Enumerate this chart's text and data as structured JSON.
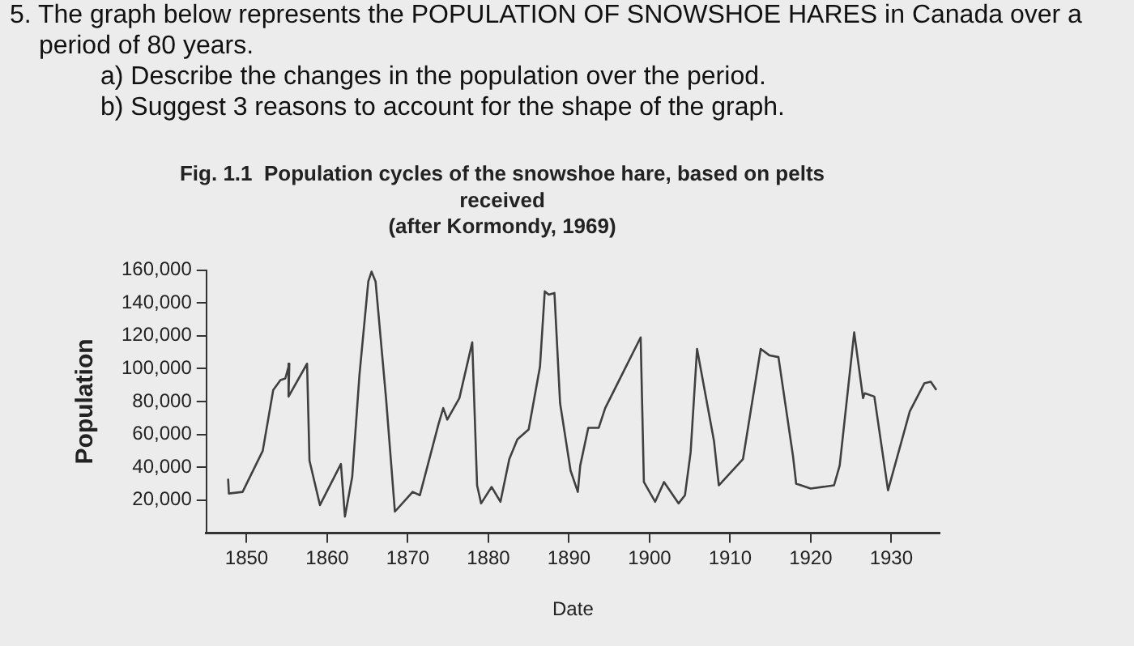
{
  "chart_data": {
    "type": "line",
    "title": [
      "Fig. 1.1  Population cycles of the snowshoe hare, based on pelts",
      "received",
      "(after Kormondy, 1969)"
    ],
    "annotations": [
      "5. The graph below represents the POPULATION OF SNOWSHOE HARES in Canada over a period of 80 years.",
      "a) Describe the changes in the population over the period.",
      "b) Suggest 3 reasons to account for the shape of the graph."
    ],
    "xlabel": "Date",
    "ylabel": "Population",
    "series": [
      {
        "color": "#404040",
        "x": [
          1847.7,
          1847.8,
          1849.5,
          1852,
          1853.3,
          1854.2,
          1854.8,
          1855.3,
          1855.2,
          1857.5,
          1857.8,
          1859.1,
          1861.7,
          1862.2,
          1863.1,
          1864,
          1865.1,
          1865.5,
          1866,
          1867.3,
          1868.4,
          1870.6,
          1871.5,
          1873.8,
          1874.4,
          1874.9,
          1876.4,
          1878,
          1878.6,
          1879.1,
          1880.4,
          1881.5,
          1882.6,
          1883.6,
          1885,
          1886.4,
          1887,
          1887.5,
          1888.2,
          1888.9,
          1890.2,
          1891.1,
          1891.4,
          1892.4,
          1893.7,
          1894.5,
          1898.9,
          1899.3,
          1900.7,
          1901.8,
          1903.6,
          1904.4,
          1905.1,
          1905.9,
          1908,
          1908.6,
          1911.6,
          1913.8,
          1914.9,
          1916,
          1917.8,
          1918.2,
          1920,
          1922.9,
          1923.6,
          1925.4,
          1926.5,
          1926.7,
          1927.9,
          1929.6,
          1932.3,
          1934.1,
          1934.9,
          1935.6
        ],
        "values": [
          33000,
          24000,
          25000,
          50000,
          87000,
          93000,
          94000,
          103000,
          83000,
          103000,
          44000,
          17000,
          42000,
          10000,
          34000,
          96000,
          153000,
          159000,
          153000,
          82000,
          13000,
          25000,
          23000,
          66000,
          76000,
          69000,
          82000,
          116000,
          29000,
          18000,
          28000,
          19000,
          45000,
          57000,
          63000,
          101000,
          147000,
          145000,
          146000,
          79000,
          38000,
          25000,
          41000,
          64000,
          64000,
          76000,
          119000,
          31000,
          19000,
          31000,
          18000,
          23000,
          49000,
          112000,
          56000,
          29000,
          45000,
          112000,
          108000,
          107000,
          47000,
          30000,
          27000,
          29000,
          41000,
          122000,
          82000,
          85000,
          83000,
          26000,
          74000,
          91000,
          92000,
          87000
        ]
      }
    ],
    "xlim": [
      1845,
      1936
    ],
    "xticks": [
      1850,
      1860,
      1870,
      1880,
      1890,
      1900,
      1910,
      1920,
      1930
    ],
    "ylim": [
      0,
      160000
    ],
    "yticks": [
      {
        "value": 20000,
        "label": "20,000"
      },
      {
        "value": 40000,
        "label": "40,000"
      },
      {
        "value": 60000,
        "label": "60,000"
      },
      {
        "value": 80000,
        "label": "80,000"
      },
      {
        "value": 100000,
        "label": "100,000"
      },
      {
        "value": 120000,
        "label": "120,000"
      },
      {
        "value": 140000,
        "label": "140,000"
      },
      {
        "value": 160000,
        "label": "160,000"
      }
    ],
    "grid": false,
    "legend": false,
    "marker": "none",
    "line_style": "solid"
  }
}
